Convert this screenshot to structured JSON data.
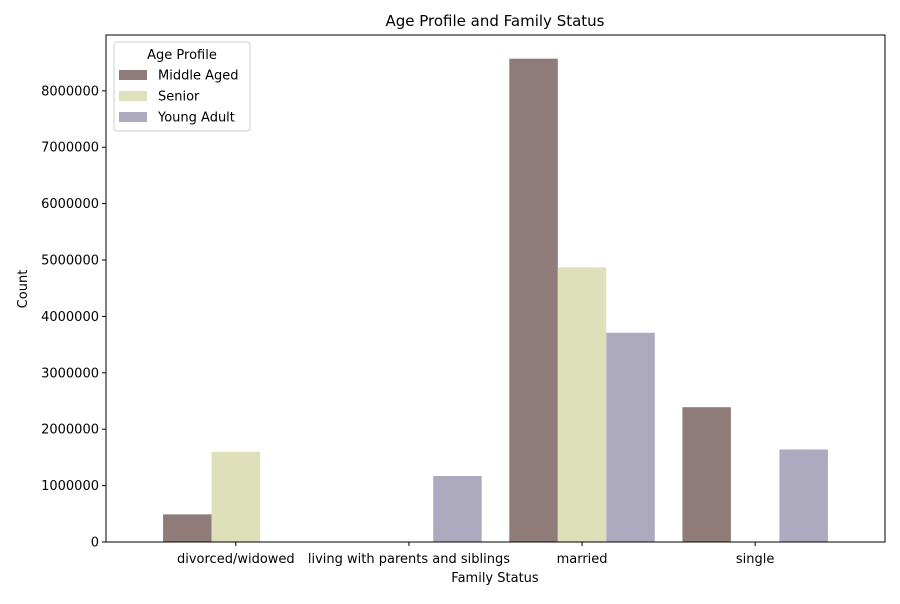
{
  "chart_data": {
    "type": "bar",
    "title": "Age Profile and Family Status",
    "xlabel": "Family Status",
    "ylabel": "Count",
    "categories": [
      "divorced/widowed",
      "living with parents and siblings",
      "married",
      "single"
    ],
    "series": [
      {
        "name": "Middle Aged",
        "color": "#8f7b79",
        "values": [
          490000,
          0,
          8570000,
          2390000
        ]
      },
      {
        "name": "Senior",
        "color": "#dee0b9",
        "values": [
          1600000,
          0,
          4870000,
          0
        ]
      },
      {
        "name": "Young Adult",
        "color": "#ada9be",
        "values": [
          0,
          1170000,
          3710000,
          1640000
        ]
      }
    ],
    "ylim": [
      0,
      8990000
    ],
    "yticks": [
      0,
      1000000,
      2000000,
      3000000,
      4000000,
      5000000,
      6000000,
      7000000,
      8000000
    ],
    "ytick_labels": [
      "0",
      "1000000",
      "2000000",
      "3000000",
      "4000000",
      "5000000",
      "6000000",
      "7000000",
      "8000000"
    ],
    "legend": {
      "title": "Age Profile",
      "position": "upper-left"
    },
    "grid": false
  }
}
